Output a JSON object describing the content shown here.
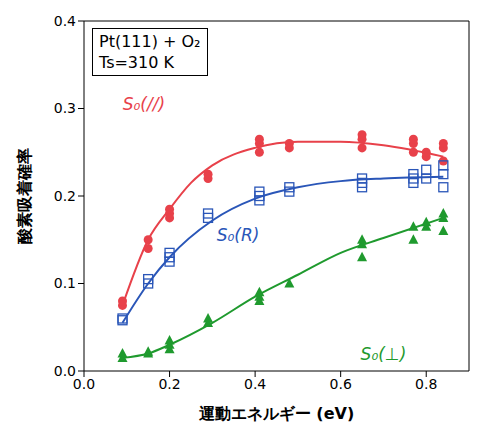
{
  "chart_data": {
    "type": "scatter",
    "annotations": [
      "Pt(111) + O₂",
      "Ts=310 K"
    ],
    "x_label": "運動エネルギー (eV)",
    "y_label": "酸素吸着確率",
    "xlim": [
      0,
      0.9
    ],
    "xticks": [
      {
        "value": 0,
        "label": "0.0"
      },
      0.2,
      0.4,
      0.6,
      0.8
    ],
    "ylim": [
      0,
      0.4
    ],
    "yticks": [
      {
        "value": 0,
        "label": "0.0"
      },
      0.1,
      0.2,
      0.3,
      0.4
    ],
    "grid": false,
    "series": [
      {
        "name": "S₀(//)",
        "color": "#e8414a",
        "marker": "circle",
        "x": [
          0.09,
          0.09,
          0.15,
          0.15,
          0.2,
          0.2,
          0.2,
          0.29,
          0.29,
          0.41,
          0.41,
          0.41,
          0.48,
          0.48,
          0.65,
          0.65,
          0.65,
          0.77,
          0.77,
          0.77,
          0.8,
          0.8,
          0.84,
          0.84,
          0.84
        ],
        "values": [
          0.075,
          0.08,
          0.14,
          0.15,
          0.175,
          0.18,
          0.185,
          0.22,
          0.225,
          0.25,
          0.26,
          0.265,
          0.26,
          0.255,
          0.255,
          0.265,
          0.27,
          0.25,
          0.26,
          0.265,
          0.245,
          0.25,
          0.24,
          0.255,
          0.26
        ],
        "fit": {
          "type": "line",
          "x": [
            0.09,
            0.15,
            0.2,
            0.25,
            0.3,
            0.4,
            0.5,
            0.6,
            0.7,
            0.84
          ],
          "values": [
            0.075,
            0.15,
            0.185,
            0.215,
            0.235,
            0.255,
            0.262,
            0.262,
            0.258,
            0.245
          ]
        }
      },
      {
        "name": "S₀(R)",
        "color": "#2a56b8",
        "marker": "open_square",
        "x": [
          0.09,
          0.09,
          0.15,
          0.15,
          0.2,
          0.2,
          0.2,
          0.29,
          0.29,
          0.41,
          0.41,
          0.41,
          0.48,
          0.48,
          0.65,
          0.65,
          0.65,
          0.77,
          0.77,
          0.77,
          0.8,
          0.8,
          0.84,
          0.84,
          0.84
        ],
        "values": [
          0.058,
          0.06,
          0.1,
          0.105,
          0.125,
          0.13,
          0.135,
          0.175,
          0.18,
          0.195,
          0.2,
          0.205,
          0.205,
          0.21,
          0.21,
          0.215,
          0.22,
          0.215,
          0.22,
          0.225,
          0.22,
          0.23,
          0.21,
          0.225,
          0.235
        ],
        "fit": {
          "type": "line",
          "x": [
            0.09,
            0.15,
            0.2,
            0.3,
            0.4,
            0.5,
            0.6,
            0.7,
            0.84
          ],
          "values": [
            0.055,
            0.1,
            0.13,
            0.172,
            0.197,
            0.21,
            0.217,
            0.22,
            0.222
          ]
        }
      },
      {
        "name": "S₀(⊥)",
        "color": "#1f9a2e",
        "marker": "triangle",
        "x": [
          0.09,
          0.09,
          0.15,
          0.15,
          0.2,
          0.2,
          0.2,
          0.29,
          0.29,
          0.41,
          0.41,
          0.41,
          0.48,
          0.65,
          0.65,
          0.65,
          0.77,
          0.77,
          0.8,
          0.8,
          0.84,
          0.84,
          0.84
        ],
        "values": [
          0.015,
          0.02,
          0.02,
          0.022,
          0.025,
          0.03,
          0.035,
          0.055,
          0.06,
          0.08,
          0.085,
          0.09,
          0.1,
          0.13,
          0.145,
          0.15,
          0.15,
          0.165,
          0.165,
          0.17,
          0.16,
          0.175,
          0.18
        ],
        "fit": {
          "type": "line",
          "x": [
            0.09,
            0.15,
            0.2,
            0.3,
            0.4,
            0.5,
            0.6,
            0.7,
            0.84
          ],
          "values": [
            0.015,
            0.02,
            0.03,
            0.055,
            0.085,
            0.11,
            0.135,
            0.152,
            0.175
          ]
        }
      }
    ]
  }
}
